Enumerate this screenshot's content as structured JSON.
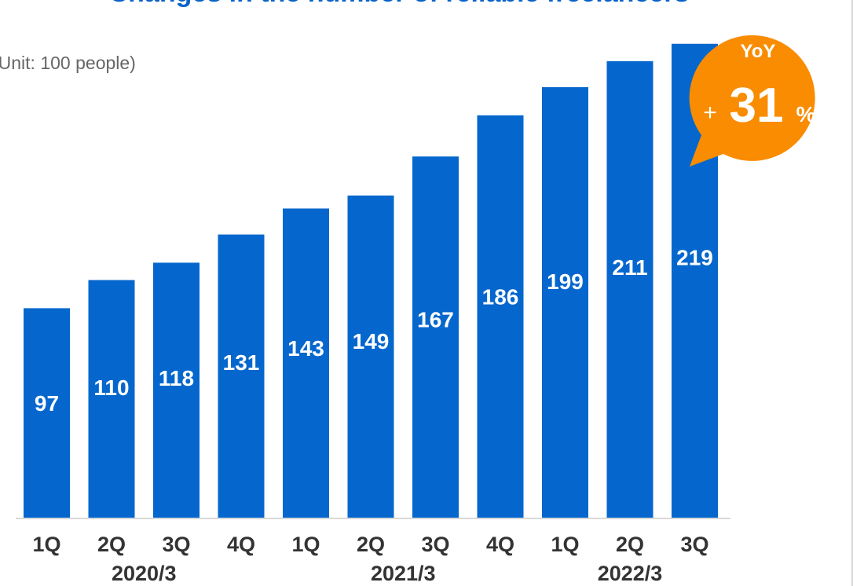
{
  "chart_data": {
    "type": "bar",
    "title": "Changes in the number of reliable freelancers",
    "unit_label": "(Unit: 100 people)",
    "categories": [
      "1Q",
      "2Q",
      "3Q",
      "4Q",
      "1Q",
      "2Q",
      "3Q",
      "4Q",
      "1Q",
      "2Q",
      "3Q"
    ],
    "fiscal_years": [
      "2020/3",
      "2021/3",
      "2022/3"
    ],
    "values": [
      97,
      110,
      118,
      131,
      143,
      149,
      167,
      186,
      199,
      211,
      219
    ],
    "ylim": [
      0,
      220
    ],
    "grid": false,
    "bar_color": "#0567cd",
    "callout": {
      "label": "YoY",
      "sign": "+",
      "value": "31",
      "suffix": "%",
      "color": "#f98c00"
    }
  }
}
